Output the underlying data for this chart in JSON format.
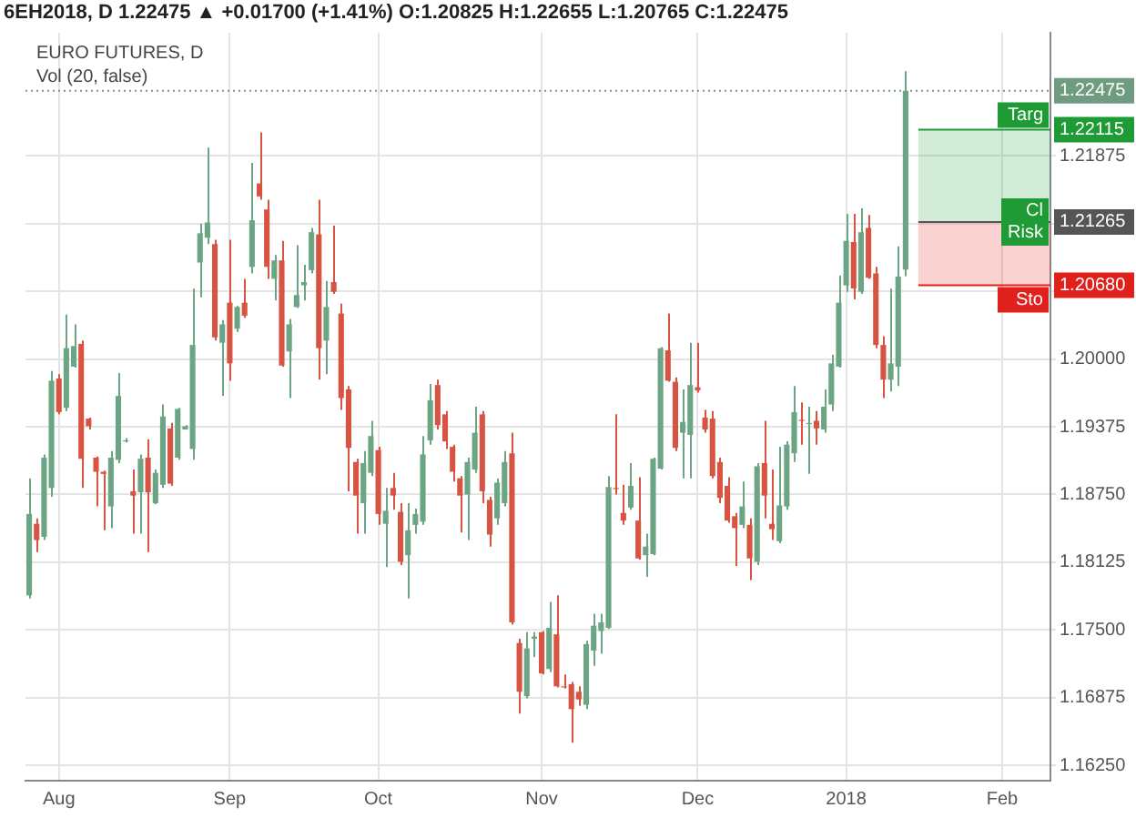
{
  "chart_data": {
    "type": "candlestick",
    "title": "6EH2018, D 1.22475 ▲ +0.01700 (+1.41%) O:1.20825 H:1.22655 L:1.20765 C:1.22475",
    "annotations": [
      "EURO FUTURES, D",
      "Vol (20, false)",
      {
        "text": "Cl Risk",
        "y": 1.21265
      }
    ],
    "categories": [
      null,
      null,
      null,
      null,
      "Aug",
      null,
      null,
      null,
      null,
      null,
      null,
      null,
      null,
      null,
      null,
      null,
      null,
      null,
      null,
      null,
      null,
      null,
      null,
      null,
      null,
      null,
      null,
      "Sep",
      null,
      null,
      null,
      null,
      null,
      null,
      null,
      null,
      null,
      null,
      null,
      null,
      null,
      null,
      null,
      null,
      null,
      null,
      null,
      "Oct",
      null,
      null,
      null,
      null,
      null,
      null,
      null,
      null,
      null,
      null,
      null,
      null,
      null,
      null,
      null,
      null,
      null,
      null,
      null,
      null,
      null,
      "Nov",
      null,
      null,
      null,
      null,
      null,
      null,
      null,
      null,
      null,
      null,
      null,
      null,
      null,
      null,
      null,
      null,
      null,
      null,
      null,
      null,
      "Dec",
      null,
      null,
      null,
      null,
      null,
      null,
      null,
      null,
      null,
      null,
      null,
      null,
      null,
      null,
      null,
      null,
      null,
      null,
      null,
      "2018",
      null,
      null,
      null,
      null,
      null,
      null,
      null,
      null,
      null,
      null,
      null,
      null,
      null,
      null,
      null,
      null,
      null,
      null,
      null,
      null,
      "Feb",
      null,
      null,
      null,
      null,
      null,
      null
    ],
    "ohlc": [
      [
        1.1782,
        1.189,
        1.1779,
        1.1857
      ],
      [
        1.1848,
        1.1853,
        1.1822,
        1.1833
      ],
      [
        1.1836,
        1.1912,
        1.1833,
        1.1909
      ],
      [
        1.1881,
        1.1989,
        1.1873,
        1.198
      ],
      [
        1.1982,
        1.1986,
        1.1949,
        1.1951
      ],
      [
        1.1955,
        1.2041,
        1.1952,
        1.201
      ],
      [
        1.1993,
        1.2032,
        1.1992,
        1.2012
      ],
      [
        1.2014,
        1.2017,
        1.1881,
        1.1908
      ],
      [
        1.1945,
        1.1946,
        1.1935,
        1.1938
      ],
      [
        1.1909,
        1.191,
        1.1864,
        1.1896
      ],
      [
        1.1896,
        1.1897,
        1.1842,
        1.1894
      ],
      [
        1.1864,
        1.1915,
        1.1844,
        1.1909
      ],
      [
        1.1907,
        1.1987,
        1.1904,
        1.1966
      ],
      [
        1.1924,
        1.1927,
        1.1923,
        1.1925
      ],
      [
        1.1878,
        1.1898,
        1.1839,
        1.1874
      ],
      [
        1.1877,
        1.1912,
        1.1839,
        1.1908
      ],
      [
        1.1909,
        1.1926,
        1.1822,
        1.1877
      ],
      [
        1.1867,
        1.1898,
        1.1866,
        1.1895
      ],
      [
        1.1884,
        1.1958,
        1.1881,
        1.1947
      ],
      [
        1.1936,
        1.1941,
        1.1883,
        1.1885
      ],
      [
        1.1909,
        1.1955,
        1.1907,
        1.1954
      ],
      [
        1.1935,
        1.1939,
        1.1935,
        1.1938
      ],
      [
        1.1917,
        1.2065,
        1.1907,
        1.2013
      ],
      [
        1.2089,
        1.2125,
        1.2057,
        1.2116
      ],
      [
        1.2112,
        1.2195,
        1.2106,
        1.2126
      ],
      [
        1.2106,
        1.211,
        1.2017,
        1.202
      ],
      [
        1.2015,
        1.2036,
        1.1966,
        1.2032
      ],
      [
        1.2052,
        1.211,
        1.198,
        1.1996
      ],
      [
        1.2028,
        1.2049,
        1.2025,
        1.2048
      ],
      [
        1.2052,
        1.2074,
        1.2038,
        1.204
      ],
      [
        1.2085,
        1.2181,
        1.2079,
        1.2128
      ],
      [
        1.2162,
        1.2209,
        1.2147,
        1.215
      ],
      [
        1.2138,
        1.2147,
        1.2074,
        1.2085
      ],
      [
        1.2074,
        1.2096,
        1.2054,
        1.2091
      ],
      [
        1.2091,
        1.2109,
        1.1993,
        1.1994
      ],
      [
        1.2007,
        1.2037,
        1.1964,
        1.2032
      ],
      [
        1.2048,
        1.2105,
        1.2047,
        1.2059
      ],
      [
        1.2068,
        1.2087,
        1.2054,
        1.2071
      ],
      [
        1.2082,
        1.2121,
        1.2079,
        1.2117
      ],
      [
        1.2115,
        1.2147,
        1.1981,
        1.201
      ],
      [
        1.2017,
        1.2072,
        1.1986,
        1.2048
      ],
      [
        1.2071,
        1.2123,
        1.206,
        1.2062
      ],
      [
        1.2042,
        1.2051,
        1.1953,
        1.1964
      ],
      [
        1.1972,
        1.1975,
        1.1878,
        1.1918
      ],
      [
        1.1905,
        1.1908,
        1.1839,
        1.1874
      ],
      [
        1.1867,
        1.1915,
        1.1839,
        1.1904
      ],
      [
        1.1895,
        1.1943,
        1.1892,
        1.1929
      ],
      [
        1.1916,
        1.1919,
        1.1847,
        1.1857
      ],
      [
        1.1848,
        1.1881,
        1.1808,
        1.186
      ],
      [
        1.1881,
        1.1895,
        1.1861,
        1.1874
      ],
      [
        1.1859,
        1.1867,
        1.181,
        1.1813
      ],
      [
        1.1819,
        1.1867,
        1.1779,
        1.1842
      ],
      [
        1.1847,
        1.1862,
        1.1839,
        1.1857
      ],
      [
        1.185,
        1.1929,
        1.1847,
        1.1912
      ],
      [
        1.1925,
        1.1977,
        1.1921,
        1.1962
      ],
      [
        1.1976,
        1.1981,
        1.1935,
        1.1939
      ],
      [
        1.1949,
        1.1952,
        1.1917,
        1.1924
      ],
      [
        1.1919,
        1.1921,
        1.1887,
        1.1896
      ],
      [
        1.189,
        1.1892,
        1.184,
        1.1874
      ],
      [
        1.1875,
        1.1909,
        1.1833,
        1.1905
      ],
      [
        1.1898,
        1.1956,
        1.1895,
        1.1932
      ],
      [
        1.1949,
        1.1952,
        1.1867,
        1.1878
      ],
      [
        1.187,
        1.1873,
        1.1827,
        1.1838
      ],
      [
        1.1853,
        1.189,
        1.1847,
        1.1886
      ],
      [
        1.1867,
        1.1915,
        1.1864,
        1.1905
      ],
      [
        1.1913,
        1.1932,
        1.1755,
        1.1757
      ],
      [
        1.1738,
        1.1742,
        1.1673,
        1.1693
      ],
      [
        1.1689,
        1.1748,
        1.1687,
        1.1733
      ],
      [
        1.1742,
        1.1748,
        1.1725,
        1.1744
      ],
      [
        1.1748,
        1.1749,
        1.1709,
        1.171
      ],
      [
        1.1714,
        1.1776,
        1.1711,
        1.1752
      ],
      [
        1.1746,
        1.1782,
        1.1697,
        1.1698
      ],
      [
        1.1698,
        1.1709,
        1.1696,
        1.1697
      ],
      [
        1.17,
        1.1702,
        1.1646,
        1.1677
      ],
      [
        1.1693,
        1.1698,
        1.168,
        1.1686
      ],
      [
        1.1681,
        1.174,
        1.1677,
        1.1737
      ],
      [
        1.1731,
        1.1765,
        1.1717,
        1.1754
      ],
      [
        1.1749,
        1.1765,
        1.1728,
        1.1757
      ],
      [
        1.1752,
        1.1892,
        1.1751,
        1.1882
      ],
      [
        1.1881,
        1.1949,
        1.1875,
        1.188
      ],
      [
        1.1858,
        1.1884,
        1.1847,
        1.1851
      ],
      [
        1.1863,
        1.1904,
        1.1861,
        1.1883
      ],
      [
        1.1851,
        1.1891,
        1.1815,
        1.1816
      ],
      [
        1.1819,
        1.1839,
        1.1799,
        1.1827
      ],
      [
        1.182,
        1.1909,
        1.1819,
        1.1908
      ],
      [
        1.1899,
        1.2011,
        1.1898,
        1.201
      ],
      [
        1.2008,
        1.2042,
        1.1979,
        1.198
      ],
      [
        1.1979,
        1.1983,
        1.1915,
        1.1918
      ],
      [
        1.1932,
        1.1972,
        1.189,
        1.1942
      ],
      [
        1.193,
        1.2015,
        1.189,
        1.1976
      ],
      [
        1.1974,
        1.2015,
        1.1969,
        1.1971
      ],
      [
        1.1946,
        1.1953,
        1.1932,
        1.1935
      ],
      [
        1.1945,
        1.1952,
        1.189,
        1.1892
      ],
      [
        1.1905,
        1.1909,
        1.1867,
        1.1872
      ],
      [
        1.1883,
        1.1891,
        1.1849,
        1.1851
      ],
      [
        1.1855,
        1.1858,
        1.1809,
        1.1844
      ],
      [
        1.1847,
        1.1887,
        1.1844,
        1.1864
      ],
      [
        1.1847,
        1.1853,
        1.1796,
        1.1816
      ],
      [
        1.1813,
        1.1904,
        1.181,
        1.1901
      ],
      [
        1.1904,
        1.1943,
        1.1853,
        1.1874
      ],
      [
        1.1848,
        1.1898,
        1.1833,
        1.1843
      ],
      [
        1.1832,
        1.1919,
        1.183,
        1.1865
      ],
      [
        1.1864,
        1.1924,
        1.1861,
        1.1921
      ],
      [
        1.1913,
        1.1975,
        1.1905,
        1.1951
      ],
      [
        1.1944,
        1.196,
        1.1921,
        1.1943
      ],
      [
        1.194,
        1.1956,
        1.1894,
        1.1941
      ],
      [
        1.1943,
        1.1952,
        1.1921,
        1.1936
      ],
      [
        1.1935,
        1.1972,
        1.1932,
        1.1956
      ],
      [
        1.1958,
        1.2004,
        1.1952,
        1.1996
      ],
      [
        1.1993,
        1.2077,
        1.1992,
        1.2052
      ],
      [
        1.2068,
        1.2134,
        1.2062,
        1.2109
      ],
      [
        1.2108,
        1.2134,
        1.2055,
        1.2065
      ],
      [
        1.2062,
        1.2139,
        1.206,
        1.2117
      ],
      [
        1.2121,
        1.2133,
        1.2074,
        1.2075
      ],
      [
        1.2079,
        1.2085,
        1.201,
        1.2013
      ],
      [
        1.2013,
        1.2021,
        1.1964,
        1.1981
      ],
      [
        1.1981,
        1.2065,
        1.197,
        1.1996
      ],
      [
        1.1993,
        1.2104,
        1.1975,
        1.2076
      ],
      [
        1.20825,
        1.22655,
        1.20765,
        1.22475
      ],
      null,
      null,
      null,
      null,
      null,
      null,
      null,
      null,
      null,
      null,
      null,
      null,
      null,
      null,
      null,
      null,
      null,
      null,
      null
    ],
    "colors": [
      "#6ba583",
      "#d75442",
      "#6ba583",
      "#6ba583",
      "#d75442",
      "#6ba583",
      "#6ba583",
      "#d75442",
      "#d75442",
      "#d75442",
      "#d75442",
      "#6ba583",
      "#6ba583",
      "#6ba583",
      "#d75442",
      "#6ba583",
      "#d75442",
      "#6ba583",
      "#6ba583",
      "#d75442",
      "#6ba583",
      "#6ba583",
      "#6ba583",
      "#6ba583",
      "#6ba583",
      "#d75442",
      "#6ba583",
      "#d75442",
      "#6ba583",
      "#d75442",
      "#6ba583",
      "#d75442",
      "#d75442",
      "#6ba583",
      "#d75442",
      "#6ba583",
      "#6ba583",
      "#6ba583",
      "#6ba583",
      "#d75442",
      "#6ba583",
      "#d75442",
      "#d75442",
      "#d75442",
      "#d75442",
      "#6ba583",
      "#6ba583",
      "#d75442",
      "#6ba583",
      "#d75442",
      "#d75442",
      "#6ba583",
      "#6ba583",
      "#6ba583",
      "#6ba583",
      "#d75442",
      "#d75442",
      "#d75442",
      "#d75442",
      "#6ba583",
      "#6ba583",
      "#d75442",
      "#d75442",
      "#6ba583",
      "#6ba583",
      "#d75442",
      "#d75442",
      "#6ba583",
      "#6ba583",
      "#d75442",
      "#6ba583",
      "#d75442",
      "#d75442",
      "#d75442",
      "#d75442",
      "#6ba583",
      "#6ba583",
      "#6ba583",
      "#6ba583",
      "#d75442",
      "#d75442",
      "#6ba583",
      "#d75442",
      "#6ba583",
      "#6ba583",
      "#6ba583",
      "#d75442",
      "#d75442",
      "#6ba583",
      "#6ba583",
      "#d75442",
      "#d75442",
      "#d75442",
      "#d75442",
      "#d75442",
      "#d75442",
      "#6ba583",
      "#d75442",
      "#6ba583",
      "#d75442",
      "#d75442",
      "#6ba583",
      "#6ba583",
      "#6ba583",
      "#d75442",
      "#6ba583",
      "#d75442",
      "#6ba583",
      "#6ba583",
      "#6ba583",
      "#6ba583",
      "#d75442",
      "#6ba583",
      "#d75442",
      "#d75442",
      "#d75442",
      "#6ba583",
      "#6ba583",
      "#6ba583",
      null,
      null,
      null,
      null,
      null,
      null,
      null,
      null,
      null,
      null,
      null,
      null,
      null,
      null,
      null,
      null,
      null,
      null,
      null
    ],
    "ylim": [
      1.1611,
      1.2301
    ],
    "yticks": [
      {
        "value": 1.1625,
        "label": "1.16250"
      },
      {
        "value": 1.16875,
        "label": "1.16875"
      },
      {
        "value": 1.175,
        "label": "1.17500"
      },
      {
        "value": 1.18125,
        "label": "1.18125"
      },
      {
        "value": 1.1875,
        "label": "1.18750"
      },
      {
        "value": 1.19375,
        "label": "1.19375"
      },
      {
        "value": 1.2,
        "label": "1.20000"
      },
      {
        "value": 1.20625,
        "label": null
      },
      {
        "value": 1.2125,
        "label": null
      },
      {
        "value": 1.21875,
        "label": "1.21875"
      }
    ],
    "bands": [
      {
        "axis": "y",
        "from": 1.21265,
        "to": 1.22115,
        "label": "Targ",
        "color": "#1e9b34"
      },
      {
        "axis": "y",
        "from": 1.2068,
        "to": 1.21265,
        "label": "Sto",
        "color": "#e0201b"
      }
    ],
    "ref_lines": [
      {
        "axis": "y",
        "value": 1.22475,
        "label": "1.22475",
        "color": "#6f9c80",
        "line_style": "dotted"
      },
      {
        "axis": "y",
        "value": 1.22115,
        "label": "1.22115",
        "color": "#1e9b34",
        "line_style": "solid"
      },
      {
        "axis": "y",
        "value": 1.21265,
        "label": "1.21265",
        "color": "#555555",
        "line_style": "solid"
      },
      {
        "axis": "y",
        "value": 1.2068,
        "label": "1.20680",
        "color": "#e0201b",
        "line_style": "solid"
      }
    ],
    "grid": true,
    "legend": false
  }
}
